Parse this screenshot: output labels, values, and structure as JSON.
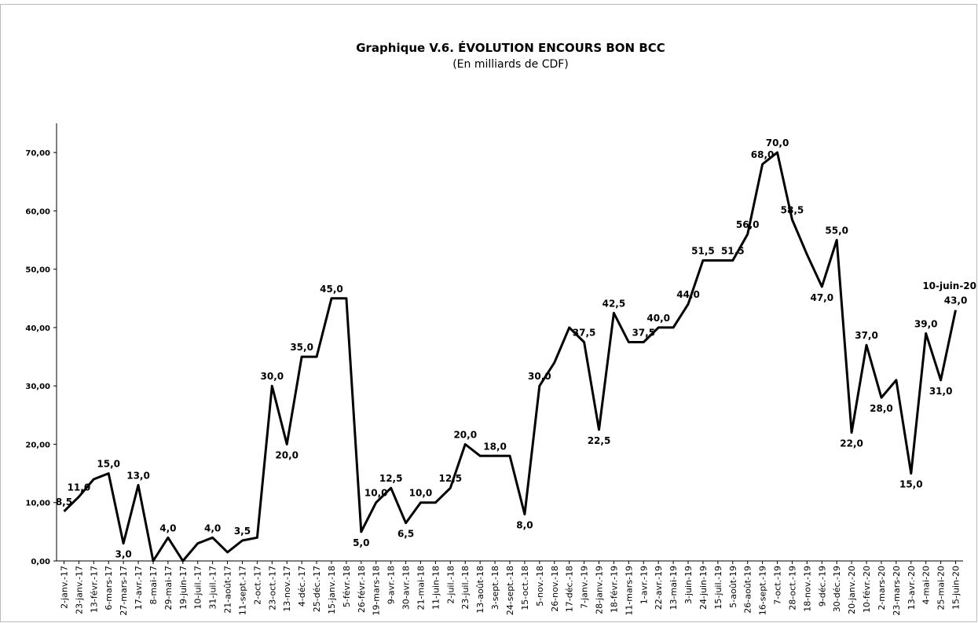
{
  "chart_data": {
    "type": "line",
    "title": "Graphique V.6. ÉVOLUTION ENCOURS BON BCC",
    "subtitle": "(En milliards de CDF)",
    "categories": [
      "2-janv.-17",
      "23-janv.-17",
      "13-févr.-17",
      "6-mars-17",
      "27-mars-17",
      "17-avr.-17",
      "8-mai-17",
      "29-mai-17",
      "19-juin-17",
      "10-juil.-17",
      "31-juil.-17",
      "21-août-17",
      "11-sept.-17",
      "2-oct.-17",
      "23-oct.-17",
      "13-nov.-17",
      "4-déc.-17",
      "25-déc.-17",
      "15-janv.-18",
      "5-févr.-18",
      "26-févr.-18",
      "19-mars-18",
      "9-avr.-18",
      "30-avr.-18",
      "21-mai-18",
      "11-juin-18",
      "2-juil.-18",
      "23-juil.-18",
      "13-août-18",
      "3-sept.-18",
      "24-sept.-18",
      "15-oct.-18",
      "5-nov.-18",
      "26-nov.-18",
      "17-déc.-18",
      "7-janv.-19",
      "28-janv.-19",
      "18-févr.-19",
      "11-mars-19",
      "1-avr.-19",
      "22-avr.-19",
      "13-mai-19",
      "3-juin-19",
      "24-juin-19",
      "15-juil.-19",
      "5-août-19",
      "26-août-19",
      "16-sept.-19",
      "7-oct.-19",
      "28-oct.-19",
      "18-nov.-19",
      "9-déc.-19",
      "30-déc.-19",
      "20-janv.-20",
      "10-févr.-20",
      "2-mars-20",
      "23-mars-20",
      "13-avr.-20",
      "4-mai-20",
      "25-mai-20",
      "15-juin-20"
    ],
    "series": [
      {
        "name": "Encours Bon BCC",
        "color": "#000000",
        "values": [
          8.5,
          11,
          14,
          15,
          3,
          13,
          0,
          4,
          0,
          3,
          4,
          1.5,
          3.5,
          4,
          30,
          20,
          35,
          35,
          45,
          45,
          5,
          10,
          12.5,
          6.5,
          10,
          10,
          12.5,
          20,
          18,
          18,
          18,
          8,
          30,
          34,
          40,
          37.5,
          22.5,
          42.5,
          37.5,
          37.5,
          40,
          40,
          44,
          51.5,
          51.5,
          51.5,
          56,
          68,
          70,
          58.5,
          52.5,
          47,
          55,
          22,
          37,
          28,
          31,
          15,
          39,
          31,
          43
        ],
        "value_labels": [
          "8,5",
          "11,0",
          null,
          "15,0",
          "3,0",
          "13,0",
          null,
          "4,0",
          null,
          null,
          "4,0",
          null,
          "3,5",
          null,
          "30,0",
          "20,0",
          "35,0",
          null,
          "45,0",
          null,
          "5,0",
          "10,0",
          "12,5",
          "6,5",
          "10,0",
          null,
          "12,5",
          "20,0",
          null,
          "18,0",
          null,
          "8,0",
          "30,0",
          null,
          null,
          "37,5",
          "22,5",
          "42,5",
          null,
          "37,5",
          "40,0",
          null,
          "44,0",
          "51,5",
          null,
          "51,5",
          "56,0",
          "68,0",
          "70,0",
          "58,5",
          null,
          "47,0",
          "55,0",
          "22,0",
          "37,0",
          "28,0",
          null,
          "15,0",
          "39,0",
          "31,0",
          "43,0"
        ]
      }
    ],
    "annotation": "10-juin-20",
    "ylim": [
      0,
      75
    ],
    "yticks": [
      {
        "value": 0,
        "label": "0,00"
      },
      {
        "value": 10,
        "label": "10,00"
      },
      {
        "value": 20,
        "label": "20,00"
      },
      {
        "value": 30,
        "label": "30,00"
      },
      {
        "value": 40,
        "label": "40,00"
      },
      {
        "value": 50,
        "label": "50,00"
      },
      {
        "value": 60,
        "label": "60,00"
      },
      {
        "value": 70,
        "label": "70,00"
      }
    ],
    "grid": false
  }
}
